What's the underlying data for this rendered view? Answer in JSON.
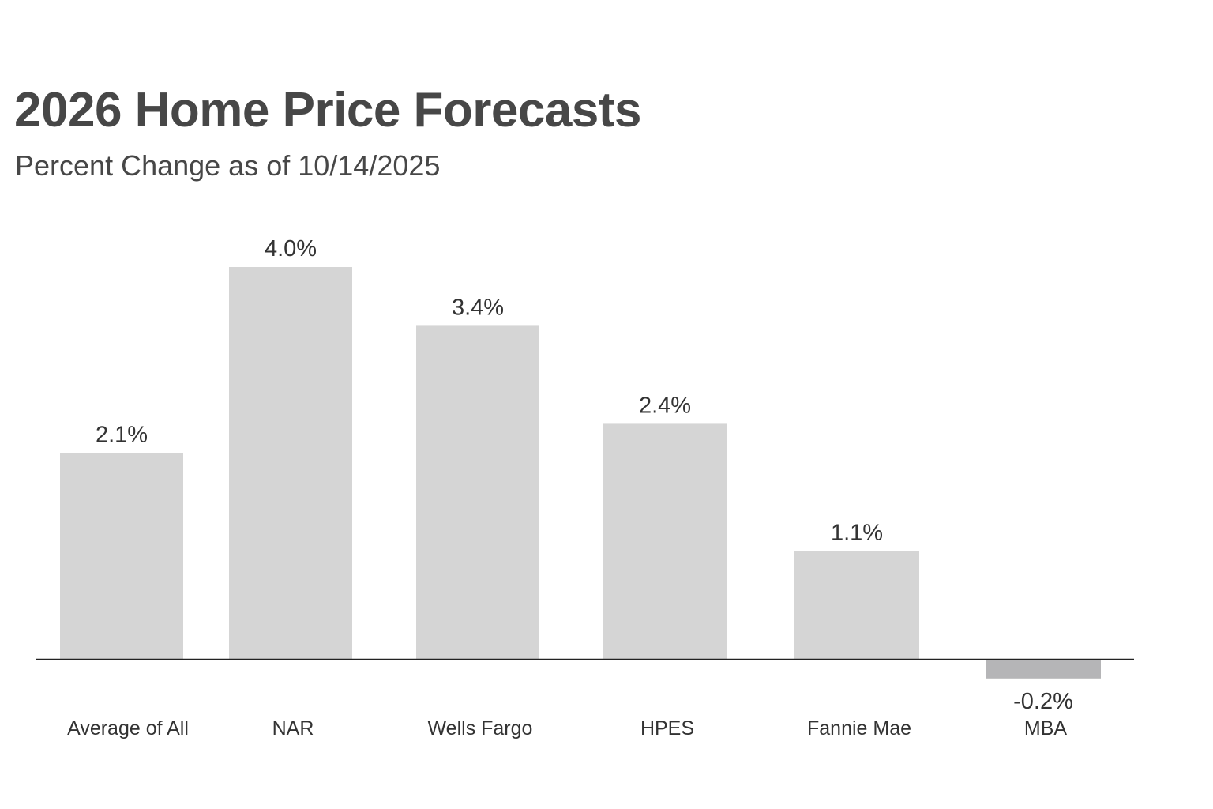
{
  "chart_data": {
    "type": "bar",
    "title": "2026 Home Price Forecasts",
    "subtitle": "Percent Change as of 10/14/2025",
    "xlabel": "",
    "ylabel": "",
    "unit": "%",
    "categories": [
      "Average of All",
      "NAR",
      "Wells Fargo",
      "HPES",
      "Fannie Mae",
      "MBA"
    ],
    "values": [
      2.1,
      4.0,
      3.4,
      2.4,
      1.1,
      -0.2
    ],
    "value_labels": [
      "2.1%",
      "4.0%",
      "3.4%",
      "2.4%",
      "1.1%",
      "-0.2%"
    ],
    "ylim": [
      -0.2,
      4.0
    ],
    "grid": false,
    "legend": "none",
    "colors": {
      "positive_bar": "#d5d5d5",
      "negative_bar": "#b5b5b7",
      "axis_line": "#222222",
      "title_text": "#474747",
      "label_text": "#333333"
    }
  }
}
